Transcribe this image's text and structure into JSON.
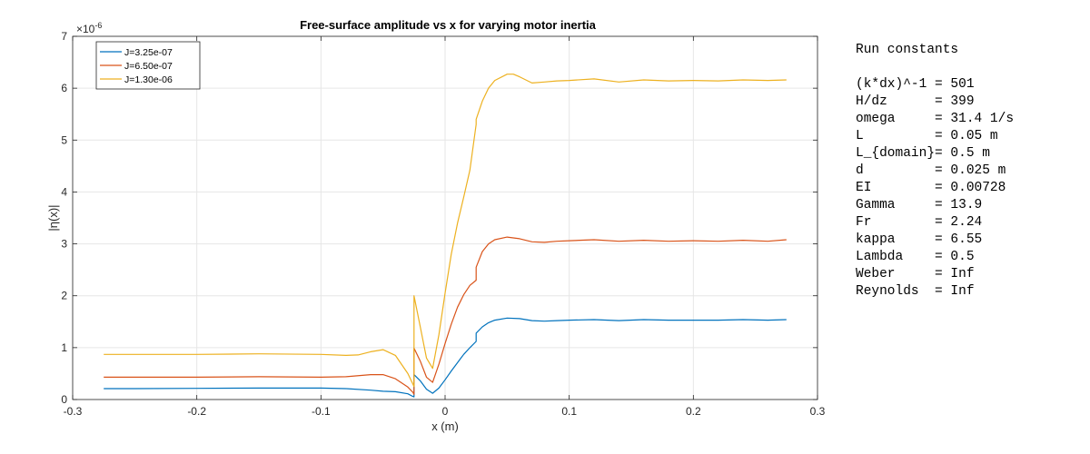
{
  "chart_data": {
    "type": "line",
    "title": "Free-surface amplitude vs x for varying motor inertia",
    "xlabel": "x (m)",
    "ylabel": "|η(x)|",
    "y_exponent_label": "×10",
    "y_exponent_power": "-6",
    "xlim": [
      -0.3,
      0.3
    ],
    "ylim": [
      0,
      7
    ],
    "xticks": [
      "-0.3",
      "-0.2",
      "-0.1",
      "0",
      "0.1",
      "0.2",
      "0.3"
    ],
    "yticks": [
      "0",
      "1",
      "2",
      "3",
      "4",
      "5",
      "6",
      "7"
    ],
    "grid": true,
    "legend_position": "top-left",
    "series": [
      {
        "name": "J=3.25e-07",
        "color": "#0072BD",
        "x": [
          -0.275,
          -0.25,
          -0.2,
          -0.15,
          -0.1,
          -0.08,
          -0.06,
          -0.05,
          -0.04,
          -0.03,
          -0.026,
          -0.025,
          -0.025,
          -0.02,
          -0.015,
          -0.01,
          -0.005,
          0.0,
          0.005,
          0.01,
          0.015,
          0.02,
          0.025,
          0.025,
          0.03,
          0.035,
          0.04,
          0.05,
          0.06,
          0.07,
          0.08,
          0.09,
          0.1,
          0.12,
          0.14,
          0.16,
          0.18,
          0.2,
          0.22,
          0.24,
          0.26,
          0.275
        ],
        "y": [
          0.21,
          0.21,
          0.215,
          0.22,
          0.22,
          0.21,
          0.18,
          0.16,
          0.15,
          0.11,
          0.06,
          0.05,
          0.48,
          0.36,
          0.2,
          0.12,
          0.22,
          0.38,
          0.55,
          0.71,
          0.87,
          1.0,
          1.12,
          1.28,
          1.4,
          1.48,
          1.53,
          1.57,
          1.56,
          1.52,
          1.51,
          1.52,
          1.53,
          1.54,
          1.52,
          1.54,
          1.53,
          1.53,
          1.53,
          1.54,
          1.53,
          1.54
        ]
      },
      {
        "name": "J=6.50e-07",
        "color": "#D95319",
        "x": [
          -0.275,
          -0.25,
          -0.2,
          -0.15,
          -0.1,
          -0.08,
          -0.06,
          -0.05,
          -0.04,
          -0.03,
          -0.026,
          -0.025,
          -0.025,
          -0.02,
          -0.015,
          -0.01,
          -0.005,
          0.0,
          0.005,
          0.01,
          0.015,
          0.02,
          0.025,
          0.025,
          0.03,
          0.035,
          0.04,
          0.05,
          0.06,
          0.07,
          0.08,
          0.09,
          0.1,
          0.12,
          0.14,
          0.16,
          0.18,
          0.2,
          0.22,
          0.24,
          0.26,
          0.275
        ],
        "y": [
          0.43,
          0.43,
          0.43,
          0.44,
          0.43,
          0.44,
          0.48,
          0.48,
          0.4,
          0.24,
          0.14,
          0.1,
          0.99,
          0.74,
          0.43,
          0.33,
          0.68,
          1.08,
          1.45,
          1.78,
          2.02,
          2.2,
          2.3,
          2.55,
          2.85,
          3.0,
          3.08,
          3.13,
          3.1,
          3.04,
          3.03,
          3.05,
          3.06,
          3.08,
          3.05,
          3.07,
          3.05,
          3.06,
          3.05,
          3.07,
          3.05,
          3.08
        ]
      },
      {
        "name": "J=1.30e-06",
        "color": "#EDB120",
        "x": [
          -0.275,
          -0.25,
          -0.2,
          -0.15,
          -0.1,
          -0.08,
          -0.07,
          -0.06,
          -0.05,
          -0.04,
          -0.03,
          -0.026,
          -0.025,
          -0.025,
          -0.02,
          -0.015,
          -0.01,
          -0.005,
          0.0,
          0.005,
          0.01,
          0.015,
          0.02,
          0.025,
          0.025,
          0.03,
          0.035,
          0.04,
          0.05,
          0.055,
          0.06,
          0.07,
          0.08,
          0.09,
          0.1,
          0.12,
          0.14,
          0.16,
          0.18,
          0.2,
          0.22,
          0.24,
          0.26,
          0.275
        ],
        "y": [
          0.87,
          0.87,
          0.87,
          0.88,
          0.87,
          0.85,
          0.86,
          0.92,
          0.96,
          0.85,
          0.5,
          0.3,
          0.25,
          2.0,
          1.4,
          0.8,
          0.6,
          1.25,
          2.05,
          2.8,
          3.4,
          3.9,
          4.42,
          5.3,
          5.4,
          5.75,
          6.0,
          6.15,
          6.27,
          6.27,
          6.22,
          6.1,
          6.12,
          6.14,
          6.15,
          6.18,
          6.12,
          6.16,
          6.14,
          6.15,
          6.14,
          6.16,
          6.15,
          6.16
        ]
      }
    ]
  },
  "constants": {
    "heading": "Run constants",
    "lines": [
      "(k*dx)^-1 = 501",
      "H/dz      = 399",
      "omega     = 31.4 1/s",
      "L         = 0.05 m",
      "L_{domain}= 0.5 m",
      "d         = 0.025 m",
      "EI        = 0.00728",
      "Gamma     = 13.9",
      "Fr        = 2.24",
      "kappa     = 6.55",
      "Lambda    = 0.5",
      "Weber     = Inf",
      "Reynolds  = Inf"
    ]
  }
}
